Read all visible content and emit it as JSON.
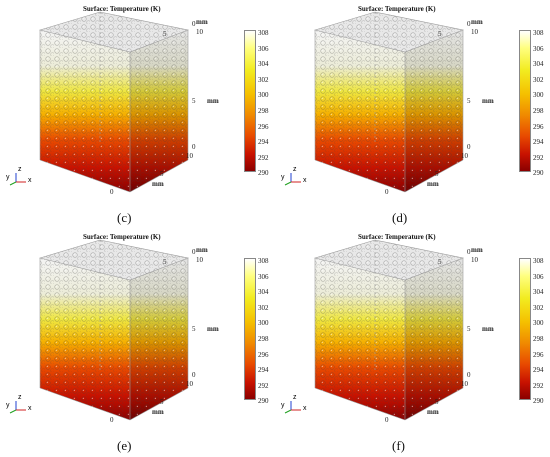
{
  "figure": {
    "panel_title": "Surface: Temperature (K)",
    "colorbar_ticks": [
      "308",
      "306",
      "304",
      "302",
      "300",
      "298",
      "296",
      "294",
      "292",
      "290"
    ],
    "axis_unit": "mm",
    "axis_ticks": {
      "zero": "0",
      "five": "5",
      "ten": "10"
    },
    "triad": {
      "x": "x",
      "y": "y",
      "z": "z"
    },
    "colors": {
      "hot": "#8a0000",
      "mid": "#f5c000",
      "cool": "#ffffff",
      "triad_x": "#d02020",
      "triad_y": "#20a020",
      "triad_z": "#2040d0"
    },
    "panels": [
      {
        "label": ""
      },
      {
        "label": ""
      },
      {
        "label": "(c)"
      },
      {
        "label": "(d)"
      },
      {
        "label": "(e)"
      },
      {
        "label": "(f)"
      }
    ]
  }
}
